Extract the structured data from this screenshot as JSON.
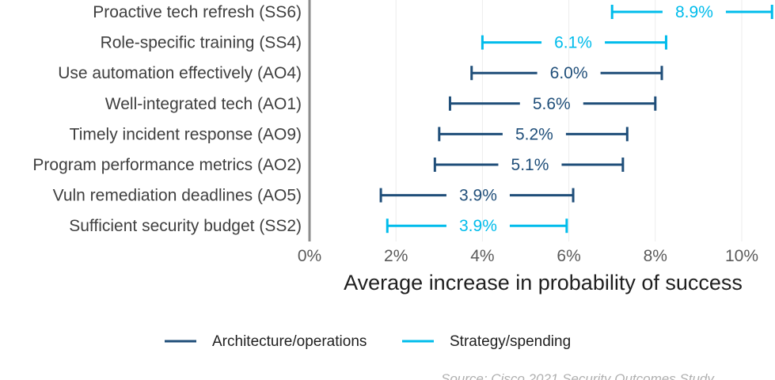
{
  "colors": {
    "architecture": "#1f4e79",
    "strategy": "#00bceb",
    "grid": "#ececec",
    "axis": "#8c8c8c"
  },
  "chart_data": {
    "type": "errorbar",
    "xlabel": "Average increase in probability of success",
    "xlim": [
      0,
      10.6
    ],
    "xticks": [
      0,
      2,
      4,
      6,
      8,
      10
    ],
    "xtick_labels": [
      "0%",
      "2%",
      "4%",
      "6%",
      "8%",
      "10%"
    ],
    "grid": "vertical",
    "legend_position": "bottom",
    "series": [
      {
        "name": "Architecture/operations",
        "color_key": "architecture"
      },
      {
        "name": "Strategy/spending",
        "color_key": "strategy"
      }
    ],
    "items": [
      {
        "category": "Proactive tech refresh (SS6)",
        "series": "Strategy/spending",
        "value": 8.9,
        "label": "8.9%",
        "low": 7.0,
        "high": 10.7
      },
      {
        "category": "Role-specific training (SS4)",
        "series": "Strategy/spending",
        "value": 6.1,
        "label": "6.1%",
        "low": 4.0,
        "high": 8.25
      },
      {
        "category": "Use automation effectively (AO4)",
        "series": "Architecture/operations",
        "value": 6.0,
        "label": "6.0%",
        "low": 3.75,
        "high": 8.15
      },
      {
        "category": "Well-integrated tech (AO1)",
        "series": "Architecture/operations",
        "value": 5.6,
        "label": "5.6%",
        "low": 3.25,
        "high": 8.0
      },
      {
        "category": "Timely incident response (AO9)",
        "series": "Architecture/operations",
        "value": 5.2,
        "label": "5.2%",
        "low": 3.0,
        "high": 7.35
      },
      {
        "category": "Program performance metrics (AO2)",
        "series": "Architecture/operations",
        "value": 5.1,
        "label": "5.1%",
        "low": 2.9,
        "high": 7.25
      },
      {
        "category": "Vuln remediation deadlines (AO5)",
        "series": "Architecture/operations",
        "value": 3.9,
        "label": "3.9%",
        "low": 1.65,
        "high": 6.1
      },
      {
        "category": "Sufficient security budget (SS2)",
        "series": "Strategy/spending",
        "value": 3.9,
        "label": "3.9%",
        "low": 1.8,
        "high": 5.95
      }
    ]
  },
  "legend": {
    "architecture_label": "Architecture/operations",
    "strategy_label": "Strategy/spending"
  },
  "source": "Source: Cisco 2021 Security Outcomes Study"
}
